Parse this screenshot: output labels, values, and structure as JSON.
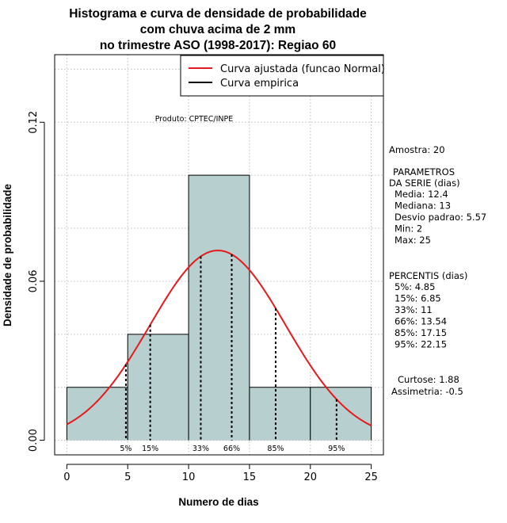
{
  "chart_data": {
    "type": "bar",
    "title_lines": [
      "Histograma e curva de densidade de probabilidade",
      "com chuva acima de 2 mm",
      "no trimestre ASO (1998-2017): Regiao 60"
    ],
    "xlabel": "Numero de dias",
    "ylabel": "Densidade de probabilidade",
    "xlim": [
      -1,
      26
    ],
    "ylim": [
      -0.0055,
      0.1455
    ],
    "x_ticks": [
      0,
      5,
      10,
      15,
      20,
      25
    ],
    "y_ticks": [
      0.0,
      0.06,
      0.12
    ],
    "y_tick_labels": [
      "0.00",
      "0.06",
      "0.12"
    ],
    "grid": true,
    "bins": [
      {
        "start": 0,
        "end": 5,
        "density": 0.02
      },
      {
        "start": 5,
        "end": 10,
        "density": 0.04
      },
      {
        "start": 10,
        "end": 15,
        "density": 0.1
      },
      {
        "start": 15,
        "end": 20,
        "density": 0.02
      },
      {
        "start": 20,
        "end": 25,
        "density": 0.02
      }
    ],
    "normal_curve": {
      "name": "Curva ajustada (funcao Normal)",
      "mean": 12.4,
      "sd": 5.57,
      "color": "#e41a1c"
    },
    "empirical_curve": {
      "name": "Curva empirica",
      "color": "#000000"
    },
    "bar_fill": "#b8cfcf",
    "percentile_markers": [
      {
        "label": "5%",
        "x": 4.85
      },
      {
        "label": "15%",
        "x": 6.85
      },
      {
        "label": "33%",
        "x": 11
      },
      {
        "label": "66%",
        "x": 13.54
      },
      {
        "label": "85%",
        "x": 17.15
      },
      {
        "label": "95%",
        "x": 22.15
      }
    ],
    "legend_position": "top-right",
    "product_label": "Produto: CPTEC/INPE"
  },
  "stats_panel": {
    "sample": "Amostra: 20",
    "params_title_1": "PARAMETROS",
    "params_title_2": "DA SERIE (dias)",
    "params": [
      "Media: 12.4",
      "Mediana: 13",
      "Desvio padrao: 5.57",
      "Min: 2",
      "Max: 25"
    ],
    "percentiles_title": "PERCENTIS (dias)",
    "percentiles": [
      "5%: 4.85",
      "15%: 6.85",
      "33%: 11",
      "66%: 13.54",
      "85%: 17.15",
      "95%: 22.15"
    ],
    "kurtosis": "Curtose: 1.88",
    "skewness": "Assimetria: -0.5"
  }
}
